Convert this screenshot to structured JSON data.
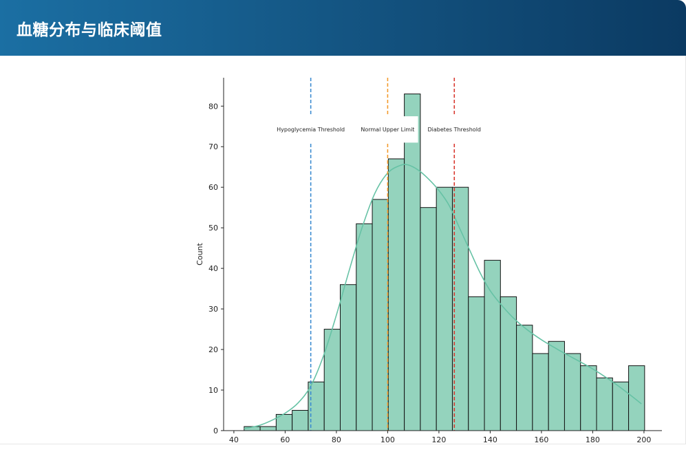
{
  "header": {
    "title": "血糖分布与临床阈值"
  },
  "chart_data": {
    "type": "bar",
    "title": "",
    "xlabel": "",
    "ylabel": "Count",
    "xlim": [
      36,
      207
    ],
    "ylim": [
      0,
      87
    ],
    "x_ticks": [
      40,
      60,
      80,
      100,
      120,
      140,
      160,
      180,
      200
    ],
    "y_ticks": [
      0,
      10,
      20,
      30,
      40,
      50,
      60,
      70,
      80
    ],
    "bin_edges": [
      44,
      50.25,
      56.5,
      62.75,
      69,
      75.25,
      81.5,
      87.75,
      94,
      100.25,
      106.5,
      112.75,
      119,
      125.25,
      131.5,
      137.75,
      144,
      150.25,
      156.5,
      162.75,
      169,
      175.25,
      181.5,
      187.75,
      194,
      200.25
    ],
    "counts": [
      1,
      1,
      4,
      5,
      12,
      25,
      36,
      51,
      57,
      67,
      83,
      55,
      60,
      60,
      33,
      42,
      33,
      26,
      19,
      22,
      19,
      16,
      13,
      12,
      16
    ],
    "bar_color": "#94d3bd",
    "kde": {
      "color": "#66c2a5",
      "x": [
        44,
        50,
        55,
        60,
        65,
        70,
        75,
        80,
        85,
        90,
        95,
        100,
        105,
        108,
        112,
        116,
        120,
        124,
        128,
        132,
        136,
        140,
        145,
        150,
        155,
        160,
        165,
        170,
        175,
        180,
        185,
        190,
        195,
        199
      ],
      "y": [
        0.5,
        1.3,
        2.6,
        4.3,
        6.8,
        11,
        18.5,
        28.5,
        39.5,
        50,
        58.5,
        63.5,
        65.4,
        65.5,
        64.2,
        62,
        59.2,
        55.5,
        50,
        44.5,
        39,
        34.5,
        30.5,
        27.2,
        24.6,
        22.4,
        20.5,
        18.7,
        17,
        15.2,
        13.2,
        11,
        8.6,
        6.6
      ]
    },
    "thresholds": [
      {
        "value": 70,
        "label": "Hypoglycemia Threshold",
        "color": "#3b8bd0"
      },
      {
        "value": 100,
        "label": "Normal Upper Limit",
        "color": "#f39a2b"
      },
      {
        "value": 126,
        "label": "Diabetes Threshold",
        "color": "#d9382f"
      }
    ]
  }
}
